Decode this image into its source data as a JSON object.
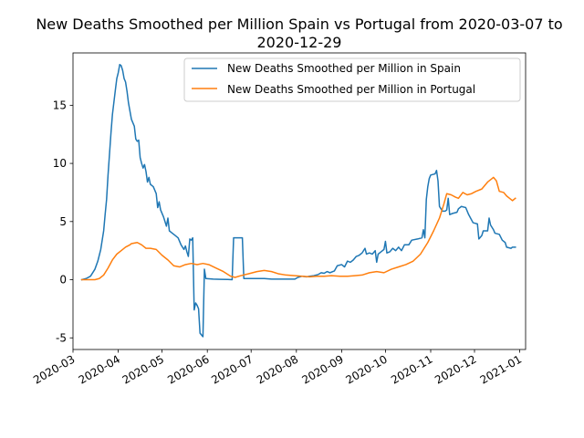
{
  "chart_data": {
    "type": "line",
    "title_lines": [
      "New Deaths Smoothed per Million Spain vs Portugal from 2020-03-07 to",
      "2020-12-29"
    ],
    "xlabel": "",
    "ylabel": "",
    "x_range": [
      "2020-03-01",
      "2021-01-05"
    ],
    "ylim": [
      -6,
      19.5
    ],
    "y_ticks": [
      -5,
      0,
      5,
      10,
      15
    ],
    "x_ticks": [
      "2020-03",
      "2020-04",
      "2020-05",
      "2020-06",
      "2020-07",
      "2020-08",
      "2020-09",
      "2020-10",
      "2020-11",
      "2020-12",
      "2021-01"
    ],
    "legend_position": "top-right",
    "grid": false,
    "series": [
      {
        "name": "New Deaths Smoothed per Million in Spain",
        "color": "#1f77b4",
        "points": [
          [
            "2020-03-07",
            0.0
          ],
          [
            "2020-03-10",
            0.1
          ],
          [
            "2020-03-13",
            0.3
          ],
          [
            "2020-03-16",
            0.9
          ],
          [
            "2020-03-18",
            1.6
          ],
          [
            "2020-03-20",
            2.6
          ],
          [
            "2020-03-22",
            4.2
          ],
          [
            "2020-03-23",
            5.6
          ],
          [
            "2020-03-24",
            6.9
          ],
          [
            "2020-03-25",
            9.0
          ],
          [
            "2020-03-27",
            12.6
          ],
          [
            "2020-03-28",
            14.2
          ],
          [
            "2020-03-30",
            16.3
          ],
          [
            "2020-03-31",
            17.3
          ],
          [
            "2020-04-01",
            17.8
          ],
          [
            "2020-04-02",
            18.5
          ],
          [
            "2020-04-03",
            18.4
          ],
          [
            "2020-04-04",
            18.0
          ],
          [
            "2020-04-05",
            17.3
          ],
          [
            "2020-04-06",
            17.0
          ],
          [
            "2020-04-07",
            16.2
          ],
          [
            "2020-04-08",
            15.2
          ],
          [
            "2020-04-10",
            13.8
          ],
          [
            "2020-04-12",
            13.2
          ],
          [
            "2020-04-13",
            12.1
          ],
          [
            "2020-04-14",
            11.9
          ],
          [
            "2020-04-15",
            12.0
          ],
          [
            "2020-04-16",
            10.5
          ],
          [
            "2020-04-17",
            10.0
          ],
          [
            "2020-04-18",
            9.6
          ],
          [
            "2020-04-19",
            9.9
          ],
          [
            "2020-04-20",
            9.3
          ],
          [
            "2020-04-21",
            8.4
          ],
          [
            "2020-04-22",
            8.8
          ],
          [
            "2020-04-23",
            8.2
          ],
          [
            "2020-04-25",
            8.0
          ],
          [
            "2020-04-27",
            7.4
          ],
          [
            "2020-04-28",
            6.2
          ],
          [
            "2020-04-29",
            6.7
          ],
          [
            "2020-04-30",
            6.0
          ],
          [
            "2020-05-02",
            5.4
          ],
          [
            "2020-05-04",
            4.6
          ],
          [
            "2020-05-05",
            5.3
          ],
          [
            "2020-05-06",
            4.2
          ],
          [
            "2020-05-08",
            4.0
          ],
          [
            "2020-05-10",
            3.8
          ],
          [
            "2020-05-12",
            3.6
          ],
          [
            "2020-05-14",
            3.0
          ],
          [
            "2020-05-16",
            2.6
          ],
          [
            "2020-05-17",
            2.9
          ],
          [
            "2020-05-18",
            2.4
          ],
          [
            "2020-05-19",
            2.0
          ],
          [
            "2020-05-20",
            3.5
          ],
          [
            "2020-05-21",
            3.4
          ],
          [
            "2020-05-22",
            3.6
          ],
          [
            "2020-05-23",
            -2.6
          ],
          [
            "2020-05-24",
            -2.0
          ],
          [
            "2020-05-25",
            -2.2
          ],
          [
            "2020-05-26",
            -2.5
          ],
          [
            "2020-05-27",
            -4.6
          ],
          [
            "2020-05-29",
            -4.9
          ],
          [
            "2020-05-30",
            0.9
          ],
          [
            "2020-05-31",
            0.1
          ],
          [
            "2020-06-05",
            0.05
          ],
          [
            "2020-06-10",
            0.03
          ],
          [
            "2020-06-15",
            0.02
          ],
          [
            "2020-06-18",
            0.0
          ],
          [
            "2020-06-19",
            3.6
          ],
          [
            "2020-06-25",
            3.6
          ],
          [
            "2020-06-26",
            0.1
          ],
          [
            "2020-07-01",
            0.1
          ],
          [
            "2020-07-10",
            0.1
          ],
          [
            "2020-07-15",
            0.05
          ],
          [
            "2020-07-20",
            0.05
          ],
          [
            "2020-07-31",
            0.05
          ],
          [
            "2020-08-02",
            0.2
          ],
          [
            "2020-08-05",
            0.3
          ],
          [
            "2020-08-08",
            0.25
          ],
          [
            "2020-08-10",
            0.3
          ],
          [
            "2020-08-13",
            0.35
          ],
          [
            "2020-08-16",
            0.45
          ],
          [
            "2020-08-18",
            0.6
          ],
          [
            "2020-08-20",
            0.55
          ],
          [
            "2020-08-22",
            0.7
          ],
          [
            "2020-08-24",
            0.6
          ],
          [
            "2020-08-27",
            0.75
          ],
          [
            "2020-08-29",
            1.2
          ],
          [
            "2020-09-01",
            1.3
          ],
          [
            "2020-09-03",
            1.1
          ],
          [
            "2020-09-05",
            1.6
          ],
          [
            "2020-09-07",
            1.5
          ],
          [
            "2020-09-09",
            1.7
          ],
          [
            "2020-09-11",
            2.0
          ],
          [
            "2020-09-13",
            2.1
          ],
          [
            "2020-09-15",
            2.3
          ],
          [
            "2020-09-17",
            2.7
          ],
          [
            "2020-09-18",
            2.2
          ],
          [
            "2020-09-20",
            2.3
          ],
          [
            "2020-09-22",
            2.2
          ],
          [
            "2020-09-24",
            2.5
          ],
          [
            "2020-09-25",
            1.5
          ],
          [
            "2020-09-26",
            2.2
          ],
          [
            "2020-09-28",
            2.4
          ],
          [
            "2020-09-30",
            2.6
          ],
          [
            "2020-10-01",
            3.3
          ],
          [
            "2020-10-02",
            2.3
          ],
          [
            "2020-10-04",
            2.4
          ],
          [
            "2020-10-06",
            2.7
          ],
          [
            "2020-10-08",
            2.5
          ],
          [
            "2020-10-10",
            2.8
          ],
          [
            "2020-10-12",
            2.5
          ],
          [
            "2020-10-14",
            3.0
          ],
          [
            "2020-10-17",
            3.0
          ],
          [
            "2020-10-19",
            3.4
          ],
          [
            "2020-10-23",
            3.5
          ],
          [
            "2020-10-26",
            3.6
          ],
          [
            "2020-10-27",
            4.3
          ],
          [
            "2020-10-28",
            3.6
          ],
          [
            "2020-10-29",
            6.9
          ],
          [
            "2020-10-30",
            8.0
          ],
          [
            "2020-10-31",
            8.7
          ],
          [
            "2020-11-01",
            9.0
          ],
          [
            "2020-11-04",
            9.1
          ],
          [
            "2020-11-05",
            9.4
          ],
          [
            "2020-11-06",
            8.5
          ],
          [
            "2020-11-07",
            6.3
          ],
          [
            "2020-11-09",
            5.9
          ],
          [
            "2020-11-11",
            5.9
          ],
          [
            "2020-11-12",
            6.0
          ],
          [
            "2020-11-13",
            7.0
          ],
          [
            "2020-11-14",
            5.6
          ],
          [
            "2020-11-16",
            5.7
          ],
          [
            "2020-11-19",
            5.8
          ],
          [
            "2020-11-20",
            6.1
          ],
          [
            "2020-11-22",
            6.3
          ],
          [
            "2020-11-25",
            6.2
          ],
          [
            "2020-11-27",
            5.6
          ],
          [
            "2020-11-30",
            4.9
          ],
          [
            "2020-12-03",
            4.8
          ],
          [
            "2020-12-04",
            3.5
          ],
          [
            "2020-12-06",
            3.8
          ],
          [
            "2020-12-07",
            4.2
          ],
          [
            "2020-12-10",
            4.2
          ],
          [
            "2020-12-11",
            5.3
          ],
          [
            "2020-12-12",
            4.7
          ],
          [
            "2020-12-14",
            4.3
          ],
          [
            "2020-12-15",
            4.0
          ],
          [
            "2020-12-18",
            3.9
          ],
          [
            "2020-12-20",
            3.4
          ],
          [
            "2020-12-22",
            3.2
          ],
          [
            "2020-12-23",
            2.8
          ],
          [
            "2020-12-26",
            2.7
          ],
          [
            "2020-12-27",
            2.8
          ],
          [
            "2020-12-29",
            2.8
          ]
        ]
      },
      {
        "name": "New Deaths Smoothed per Million in Portugal",
        "color": "#ff7f0e",
        "points": [
          [
            "2020-03-07",
            0.0
          ],
          [
            "2020-03-16",
            0.0
          ],
          [
            "2020-03-19",
            0.1
          ],
          [
            "2020-03-22",
            0.4
          ],
          [
            "2020-03-25",
            1.0
          ],
          [
            "2020-03-28",
            1.7
          ],
          [
            "2020-03-31",
            2.2
          ],
          [
            "2020-04-03",
            2.5
          ],
          [
            "2020-04-06",
            2.8
          ],
          [
            "2020-04-09",
            3.0
          ],
          [
            "2020-04-10",
            3.1
          ],
          [
            "2020-04-14",
            3.2
          ],
          [
            "2020-04-17",
            3.0
          ],
          [
            "2020-04-20",
            2.7
          ],
          [
            "2020-04-23",
            2.7
          ],
          [
            "2020-04-27",
            2.6
          ],
          [
            "2020-05-01",
            2.1
          ],
          [
            "2020-05-05",
            1.7
          ],
          [
            "2020-05-09",
            1.2
          ],
          [
            "2020-05-13",
            1.1
          ],
          [
            "2020-05-17",
            1.3
          ],
          [
            "2020-05-21",
            1.4
          ],
          [
            "2020-05-25",
            1.3
          ],
          [
            "2020-05-29",
            1.4
          ],
          [
            "2020-06-02",
            1.3
          ],
          [
            "2020-06-07",
            1.0
          ],
          [
            "2020-06-12",
            0.7
          ],
          [
            "2020-06-17",
            0.3
          ],
          [
            "2020-06-20",
            0.2
          ],
          [
            "2020-06-24",
            0.35
          ],
          [
            "2020-06-29",
            0.5
          ],
          [
            "2020-07-05",
            0.7
          ],
          [
            "2020-07-10",
            0.8
          ],
          [
            "2020-07-15",
            0.7
          ],
          [
            "2020-07-20",
            0.5
          ],
          [
            "2020-07-25",
            0.4
          ],
          [
            "2020-07-31",
            0.35
          ],
          [
            "2020-08-05",
            0.3
          ],
          [
            "2020-08-10",
            0.25
          ],
          [
            "2020-08-15",
            0.3
          ],
          [
            "2020-08-20",
            0.3
          ],
          [
            "2020-08-25",
            0.35
          ],
          [
            "2020-08-31",
            0.3
          ],
          [
            "2020-09-05",
            0.3
          ],
          [
            "2020-09-10",
            0.35
          ],
          [
            "2020-09-15",
            0.4
          ],
          [
            "2020-09-20",
            0.6
          ],
          [
            "2020-09-25",
            0.7
          ],
          [
            "2020-09-30",
            0.6
          ],
          [
            "2020-10-05",
            0.9
          ],
          [
            "2020-10-10",
            1.1
          ],
          [
            "2020-10-15",
            1.3
          ],
          [
            "2020-10-20",
            1.6
          ],
          [
            "2020-10-25",
            2.2
          ],
          [
            "2020-10-30",
            3.2
          ],
          [
            "2020-11-03",
            4.2
          ],
          [
            "2020-11-07",
            5.3
          ],
          [
            "2020-11-10",
            6.5
          ],
          [
            "2020-11-12",
            7.4
          ],
          [
            "2020-11-15",
            7.3
          ],
          [
            "2020-11-18",
            7.1
          ],
          [
            "2020-11-20",
            7.0
          ],
          [
            "2020-11-23",
            7.5
          ],
          [
            "2020-11-26",
            7.3
          ],
          [
            "2020-11-29",
            7.4
          ],
          [
            "2020-12-02",
            7.6
          ],
          [
            "2020-12-06",
            7.8
          ],
          [
            "2020-12-10",
            8.4
          ],
          [
            "2020-12-13",
            8.7
          ],
          [
            "2020-12-14",
            8.8
          ],
          [
            "2020-12-16",
            8.5
          ],
          [
            "2020-12-18",
            7.6
          ],
          [
            "2020-12-21",
            7.5
          ],
          [
            "2020-12-23",
            7.2
          ],
          [
            "2020-12-25",
            7.0
          ],
          [
            "2020-12-27",
            6.8
          ],
          [
            "2020-12-29",
            7.0
          ]
        ]
      }
    ]
  }
}
